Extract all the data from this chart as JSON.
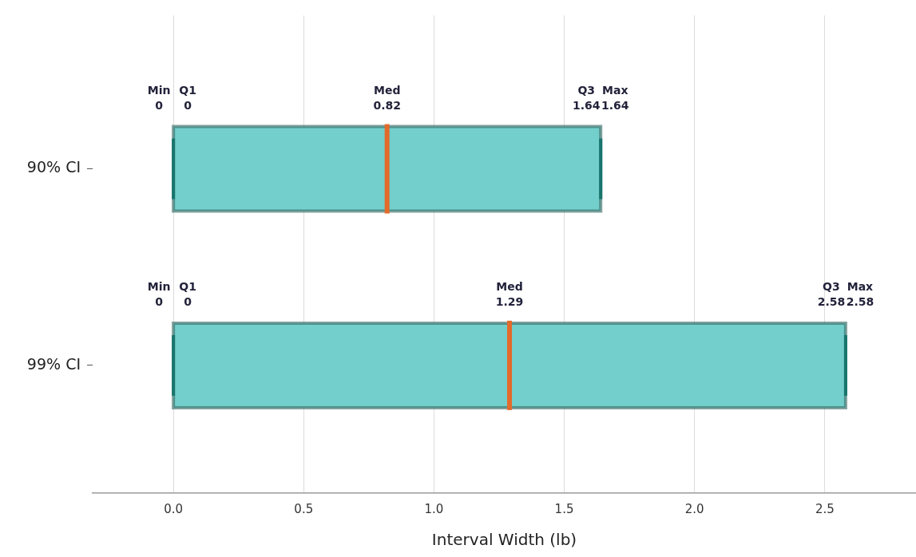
{
  "chart_data": {
    "type": "box",
    "orientation": "horizontal",
    "xlabel": "Interval Width (lb)",
    "categories": [
      "90% CI",
      "99% CI"
    ],
    "color": "#72cfcc",
    "boxes": [
      {
        "low": 0,
        "q1": 0,
        "median": 0.82,
        "q3": 1.64,
        "high": 1.64
      },
      {
        "low": 0,
        "q1": 0,
        "median": 1.29,
        "q3": 2.58,
        "high": 2.58
      }
    ],
    "xlim": [
      -0.31,
      2.85
    ],
    "xticks": [
      {
        "value": 0,
        "label": "0.0"
      },
      {
        "value": 0.5,
        "label": "0.5"
      },
      {
        "value": 1,
        "label": "1.0"
      },
      {
        "value": 1.5,
        "label": "1.5"
      },
      {
        "value": 2,
        "label": "2.0"
      },
      {
        "value": 2.5,
        "label": "2.5"
      }
    ],
    "grid": "x",
    "annotations": [
      "Min\n0",
      "Q1\n0",
      "Med\n0.82",
      "Q3\n1.64",
      "Max\n1.64",
      "Min\n0",
      "Q1\n0",
      "Med\n1.29",
      "Q3\n2.58",
      "Max\n2.58"
    ]
  }
}
